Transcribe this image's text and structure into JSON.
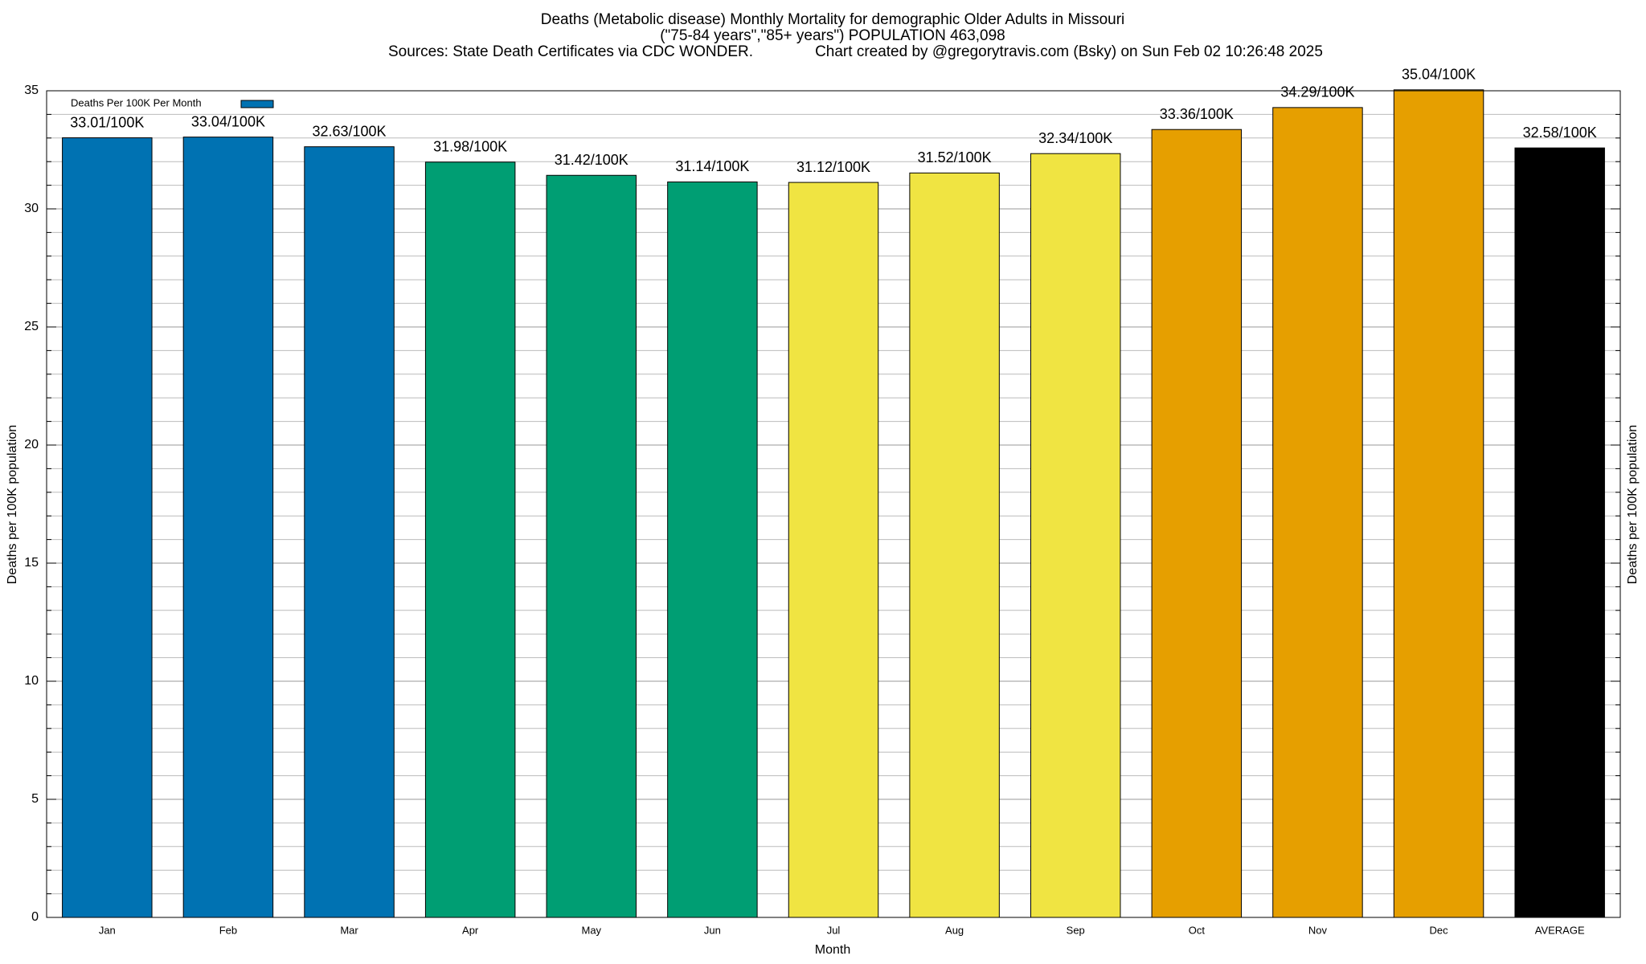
{
  "chart_data": {
    "type": "bar",
    "title": "Deaths (Metabolic disease) Monthly Mortality for demographic Older Adults in Missouri",
    "subtitle": "(\"75-84 years\",\"85+ years\") POPULATION 463,098",
    "source": "Sources: State Death Certificates via CDC WONDER.",
    "credit": "Chart created by @gregorytravis.com (Bsky) on Sun Feb 02 10:26:48 2025",
    "xlabel": "Month",
    "ylabel": "Deaths per 100K population",
    "categories": [
      "Jan",
      "Feb",
      "Mar",
      "Apr",
      "May",
      "Jun",
      "Jul",
      "Aug",
      "Sep",
      "Oct",
      "Nov",
      "Dec",
      "AVERAGE"
    ],
    "series": [
      {
        "name": "Deaths Per 100K Per Month",
        "color": "#0072b2",
        "colors": [
          "#0072b2",
          "#0072b2",
          "#0072b2",
          "#009e73",
          "#009e73",
          "#009e73",
          "#f0e442",
          "#f0e442",
          "#f0e442",
          "#e69f00",
          "#e69f00",
          "#e69f00",
          "#000000"
        ],
        "values": [
          33.01,
          33.04,
          32.63,
          31.98,
          31.42,
          31.14,
          31.12,
          31.52,
          32.34,
          33.36,
          34.29,
          35.04,
          32.58
        ],
        "value_labels": [
          "33.01/100K",
          "33.04/100K",
          "32.63/100K",
          "31.98/100K",
          "31.42/100K",
          "31.14/100K",
          "31.12/100K",
          "31.52/100K",
          "32.34/100K",
          "33.36/100K",
          "34.29/100K",
          "35.04/100K",
          "32.58/100K"
        ]
      }
    ],
    "ylim": [
      0,
      35
    ],
    "yticks": [
      0,
      5,
      10,
      15,
      20,
      25,
      30,
      35
    ],
    "yminorticks": [
      1,
      2,
      3,
      4,
      6,
      7,
      8,
      9,
      11,
      12,
      13,
      14,
      16,
      17,
      18,
      19,
      21,
      22,
      23,
      24,
      26,
      27,
      28,
      29,
      31,
      32,
      33,
      34
    ],
    "grid": true,
    "legend": "top-left"
  }
}
